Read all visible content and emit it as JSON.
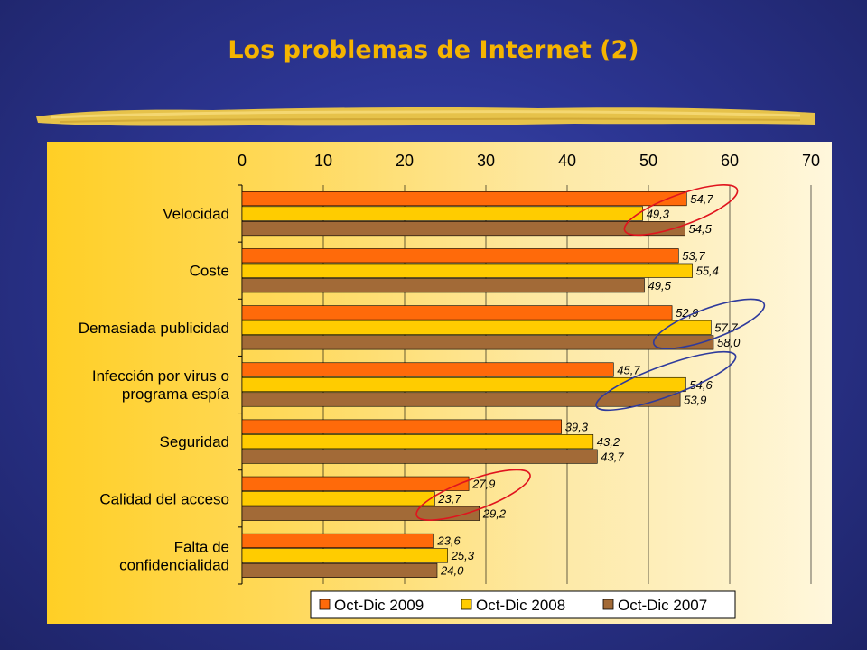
{
  "slide": {
    "title": "Los problemas de Internet (2)"
  },
  "colors": {
    "title": "#f5b400",
    "series": [
      "#ff6a0a",
      "#ffcc00",
      "#a26a37"
    ],
    "ellipse_red": "#e0141e",
    "ellipse_blue": "#2e3a9c"
  },
  "chart_data": {
    "type": "bar",
    "orientation": "horizontal",
    "categories": [
      [
        "Velocidad"
      ],
      [
        "Coste"
      ],
      [
        "Demasiada publicidad"
      ],
      [
        "Infección por virus o",
        "programa espía"
      ],
      [
        "Seguridad"
      ],
      [
        "Calidad del acceso"
      ],
      [
        "Falta de",
        "confidencialidad"
      ]
    ],
    "series": [
      {
        "name": "Oct-Dic 2009",
        "values": [
          54.7,
          53.7,
          52.9,
          45.7,
          39.3,
          27.9,
          23.6
        ],
        "labels": [
          "54,7",
          "53,7",
          "52,9",
          "45,7",
          "39,3",
          "27,9",
          "23,6"
        ]
      },
      {
        "name": "Oct-Dic 2008",
        "values": [
          49.3,
          55.4,
          57.7,
          54.6,
          43.2,
          23.7,
          25.3
        ],
        "labels": [
          "49,3",
          "55,4",
          "57,7",
          "54,6",
          "43,2",
          "23,7",
          "25,3"
        ]
      },
      {
        "name": "Oct-Dic 2007",
        "values": [
          54.5,
          49.5,
          58.0,
          53.9,
          43.7,
          29.2,
          24.0
        ],
        "labels": [
          "54,5",
          "49,5",
          "58,0",
          "53,9",
          "43,7",
          "29,2",
          "24,0"
        ]
      }
    ],
    "xlim": [
      0,
      70
    ],
    "xticks": [
      "0",
      "10",
      "20",
      "30",
      "40",
      "50",
      "60",
      "70"
    ],
    "tick_position": "top",
    "grid": true,
    "legend_position": "bottom",
    "highlights": [
      {
        "category": 0,
        "color": "red"
      },
      {
        "category": 2,
        "color": "blue"
      },
      {
        "category": 3,
        "color": "blue"
      },
      {
        "category": 5,
        "color": "red"
      }
    ]
  }
}
